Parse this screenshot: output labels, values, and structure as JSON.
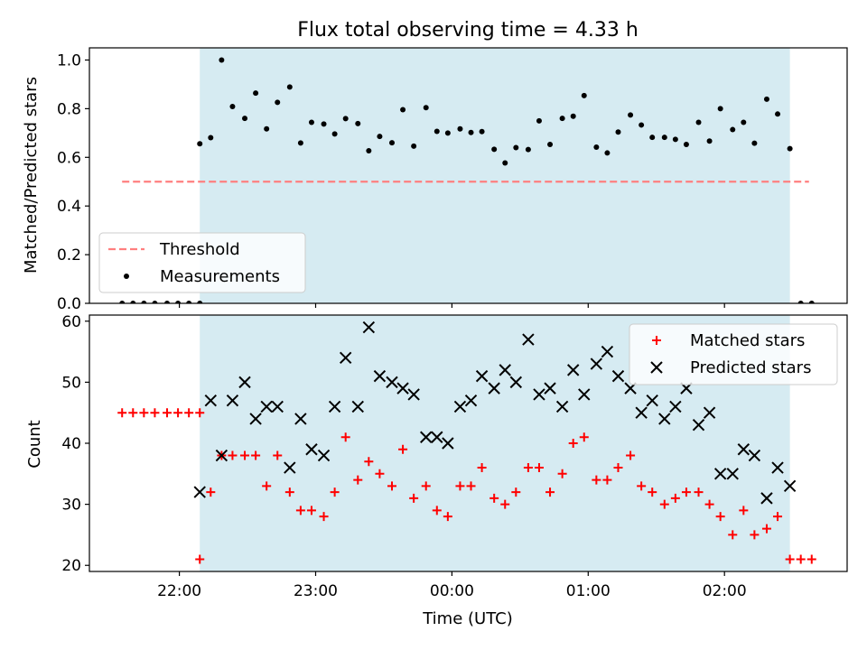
{
  "title": "Flux total observing time = 4.33 h",
  "chart_data": [
    {
      "type": "scatter",
      "panel": "top",
      "ylabel": "Matched/Predicted stars",
      "ylim": [
        0,
        1.05
      ],
      "yticks": [
        0.0,
        0.2,
        0.4,
        0.6,
        0.8,
        1.0
      ],
      "ytick_labels": [
        "0.0",
        "0.2",
        "0.4",
        "0.6",
        "0.8",
        "1.0"
      ],
      "xlim": [
        21.34,
        26.9
      ],
      "xticks": [
        22,
        23,
        24,
        25,
        26
      ],
      "shaded_interval": [
        22.15,
        26.48
      ],
      "threshold": {
        "name": "Threshold",
        "value": 0.5,
        "x_range": [
          21.58,
          26.62
        ],
        "color": "#ff7f7f",
        "style": "dashed"
      },
      "legend": {
        "position": "lower-left",
        "entries": [
          "Threshold",
          "Measurements"
        ]
      },
      "series": [
        {
          "name": "Measurements",
          "color": "#000000",
          "marker": "dot",
          "x": [
            21.58,
            21.66,
            21.74,
            21.82,
            21.91,
            21.99,
            22.07,
            22.15,
            22.15,
            22.23,
            22.31,
            22.39,
            22.48,
            22.56,
            22.64,
            22.72,
            22.81,
            22.89,
            22.97,
            23.06,
            23.14,
            23.22,
            23.31,
            23.39,
            23.47,
            23.56,
            23.64,
            23.72,
            23.81,
            23.89,
            23.97,
            24.06,
            24.14,
            24.22,
            24.31,
            24.39,
            24.47,
            24.56,
            24.64,
            24.72,
            24.81,
            24.89,
            24.97,
            25.06,
            25.14,
            25.22,
            25.31,
            25.39,
            25.47,
            25.56,
            25.64,
            25.72,
            25.81,
            25.89,
            25.97,
            26.06,
            26.14,
            26.22,
            26.31,
            26.39,
            26.48,
            26.56,
            26.64
          ],
          "y": [
            0.0,
            0.0,
            0.0,
            0.0,
            0.0,
            0.0,
            0.0,
            0.0,
            0.656,
            0.681,
            1.0,
            0.809,
            0.76,
            0.864,
            0.717,
            0.826,
            0.889,
            0.659,
            0.744,
            0.737,
            0.696,
            0.759,
            0.739,
            0.627,
            0.686,
            0.66,
            0.796,
            0.646,
            0.804,
            0.707,
            0.7,
            0.717,
            0.702,
            0.706,
            0.633,
            0.577,
            0.64,
            0.632,
            0.75,
            0.653,
            0.76,
            0.769,
            0.854,
            0.642,
            0.618,
            0.704,
            0.774,
            0.733,
            0.682,
            0.682,
            0.674,
            0.653,
            0.744,
            0.667,
            0.8,
            0.714,
            0.744,
            0.658,
            0.839,
            0.778,
            0.636,
            0.0,
            0.0
          ]
        }
      ]
    },
    {
      "type": "scatter",
      "panel": "bottom",
      "xlabel": "Time (UTC)",
      "ylabel": "Count",
      "ylim": [
        19,
        61
      ],
      "yticks": [
        20,
        30,
        40,
        50,
        60
      ],
      "ytick_labels": [
        "20",
        "30",
        "40",
        "50",
        "60"
      ],
      "xlim": [
        21.34,
        26.9
      ],
      "xticks": [
        22,
        23,
        24,
        25,
        26
      ],
      "xtick_labels": [
        "22:00",
        "23:00",
        "00:00",
        "01:00",
        "02:00"
      ],
      "shaded_interval": [
        22.15,
        26.48
      ],
      "legend": {
        "position": "top-right",
        "entries": [
          "Matched stars",
          "Predicted stars"
        ]
      },
      "series": [
        {
          "name": "Matched stars",
          "color": "#ff0000",
          "marker": "plus",
          "x": [
            21.58,
            21.66,
            21.74,
            21.82,
            21.91,
            21.99,
            22.07,
            22.15,
            22.15,
            22.23,
            22.31,
            22.39,
            22.48,
            22.56,
            22.64,
            22.72,
            22.81,
            22.89,
            22.97,
            23.06,
            23.14,
            23.22,
            23.31,
            23.39,
            23.47,
            23.56,
            23.64,
            23.72,
            23.81,
            23.89,
            23.97,
            24.06,
            24.14,
            24.22,
            24.31,
            24.39,
            24.47,
            24.56,
            24.64,
            24.72,
            24.81,
            24.89,
            24.97,
            25.06,
            25.14,
            25.22,
            25.31,
            25.39,
            25.47,
            25.56,
            25.64,
            25.72,
            25.81,
            25.89,
            25.97,
            26.06,
            26.14,
            26.22,
            26.31,
            26.39,
            26.48,
            26.56,
            26.64
          ],
          "y": [
            45,
            45,
            45,
            45,
            45,
            45,
            45,
            45,
            21,
            32,
            38,
            38,
            38,
            38,
            33,
            38,
            32,
            29,
            29,
            28,
            32,
            41,
            34,
            37,
            35,
            33,
            39,
            31,
            33,
            29,
            28,
            33,
            33,
            36,
            31,
            30,
            32,
            36,
            36,
            32,
            35,
            40,
            41,
            34,
            34,
            36,
            38,
            33,
            32,
            30,
            31,
            32,
            32,
            30,
            28,
            25,
            29,
            25,
            26,
            28,
            21,
            21,
            21
          ]
        },
        {
          "name": "Predicted stars",
          "color": "#000000",
          "marker": "x",
          "x": [
            22.15,
            22.23,
            22.31,
            22.39,
            22.48,
            22.56,
            22.64,
            22.72,
            22.81,
            22.89,
            22.97,
            23.06,
            23.14,
            23.22,
            23.31,
            23.39,
            23.47,
            23.56,
            23.64,
            23.72,
            23.81,
            23.89,
            23.97,
            24.06,
            24.14,
            24.22,
            24.31,
            24.39,
            24.47,
            24.56,
            24.64,
            24.72,
            24.81,
            24.89,
            24.97,
            25.06,
            25.14,
            25.22,
            25.31,
            25.39,
            25.47,
            25.56,
            25.64,
            25.72,
            25.81,
            25.89,
            25.97,
            26.06,
            26.14,
            26.22,
            26.31,
            26.39,
            26.48
          ],
          "y": [
            32,
            47,
            38,
            47,
            50,
            44,
            46,
            46,
            36,
            44,
            39,
            38,
            46,
            54,
            46,
            59,
            51,
            50,
            49,
            48,
            41,
            41,
            40,
            46,
            47,
            51,
            49,
            52,
            50,
            57,
            48,
            49,
            46,
            52,
            48,
            53,
            55,
            51,
            49,
            45,
            47,
            44,
            46,
            49,
            43,
            45,
            35,
            35,
            39,
            38,
            31,
            36,
            33
          ]
        }
      ]
    }
  ],
  "colors": {
    "shade": "#add8e6",
    "shade_opacity": 0.5
  }
}
